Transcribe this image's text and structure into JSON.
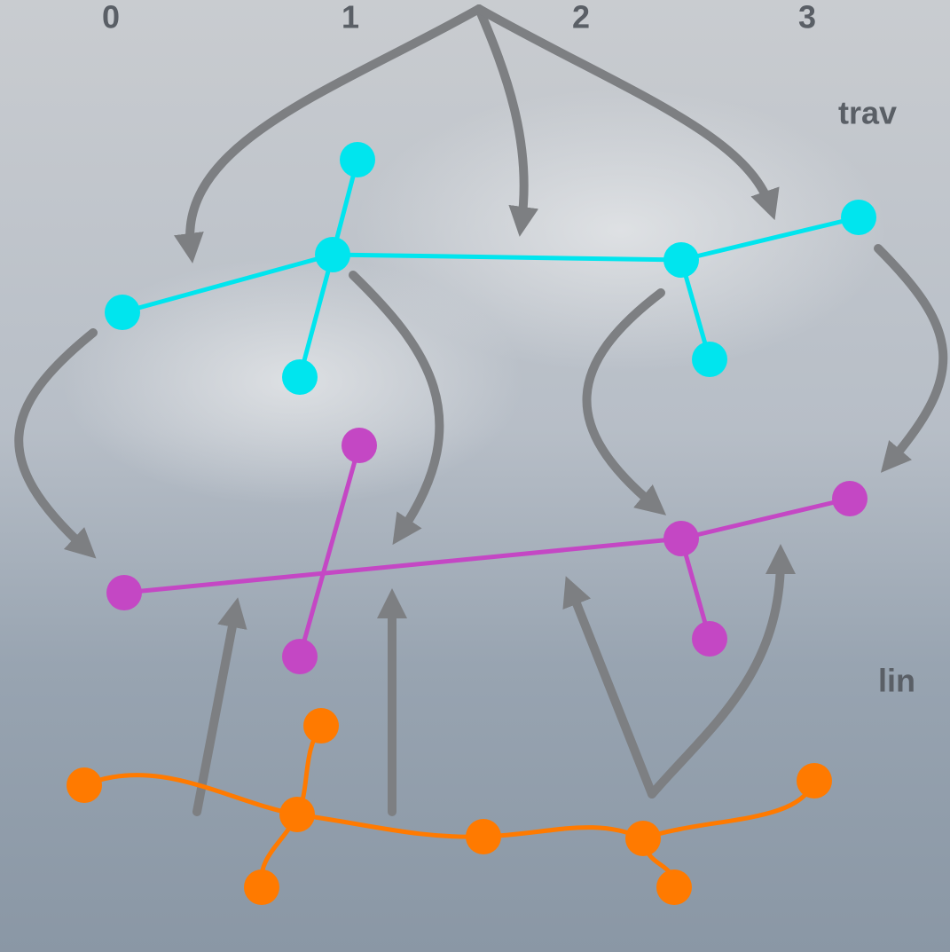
{
  "column_labels": [
    "0",
    "1",
    "2",
    "3"
  ],
  "labels": {
    "top": "trav",
    "bottom": "lin"
  }
}
